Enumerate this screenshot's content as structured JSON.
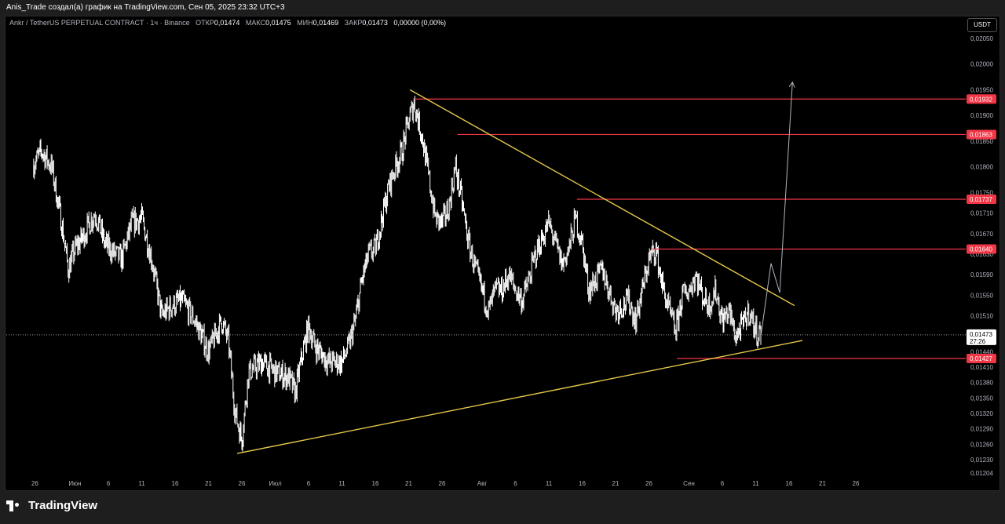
{
  "header": {
    "attribution": "Anis_Trade создал(а) график на TradingView.com, Сен 05, 2025 23:32 UTC+3"
  },
  "legend": {
    "symbol": "Ankr / TetherUS PERPETUAL CONTRACT · 1ч · Binance",
    "open_label": "ОТКР",
    "open": "0,01474",
    "high_label": "МАКС",
    "high": "0,01475",
    "low_label": "МИН",
    "low": "0,01469",
    "close_label": "ЗАКР",
    "close": "0,01473",
    "change": "0,00000 (0,00%)"
  },
  "currency_button": "USDT",
  "footer": {
    "brand": "TradingView"
  },
  "colors": {
    "background": "#000000",
    "candles": "#ffffff",
    "trendlines": "#e6c84a",
    "levels": "#f23645",
    "projection": "#b2b5be"
  },
  "chart_data": {
    "type": "line",
    "title": "Ankr / TetherUS PERPETUAL CONTRACT · 1ч · Binance",
    "xlabel": "",
    "ylabel": "",
    "ylim": [
      0.0119,
      0.0207
    ],
    "y_ticks": [
      "0,02050",
      "0,02000",
      "0,01950",
      "0,01900",
      "0,01850",
      "0,01800",
      "0,01750",
      "0,01710",
      "0,01670",
      "0,01630",
      "0,01590",
      "0,01550",
      "0,01510",
      "0,01440",
      "0,01410",
      "0,01380",
      "0,01350",
      "0,01320",
      "0,01290",
      "0,01260",
      "0,01230",
      "0,01204"
    ],
    "x_ticks": [
      {
        "label": "26",
        "d": -1
      },
      {
        "label": "Июн",
        "d": 5
      },
      {
        "label": "6",
        "d": 10
      },
      {
        "label": "11",
        "d": 15
      },
      {
        "label": "16",
        "d": 20
      },
      {
        "label": "21",
        "d": 25
      },
      {
        "label": "26",
        "d": 30
      },
      {
        "label": "Июл",
        "d": 35
      },
      {
        "label": "6",
        "d": 40
      },
      {
        "label": "11",
        "d": 45
      },
      {
        "label": "16",
        "d": 50
      },
      {
        "label": "21",
        "d": 55
      },
      {
        "label": "26",
        "d": 60
      },
      {
        "label": "Авг",
        "d": 66
      },
      {
        "label": "6",
        "d": 71
      },
      {
        "label": "11",
        "d": 76
      },
      {
        "label": "16",
        "d": 81
      },
      {
        "label": "21",
        "d": 86
      },
      {
        "label": "26",
        "d": 91
      },
      {
        "label": "Сен",
        "d": 97
      },
      {
        "label": "6",
        "d": 102
      },
      {
        "label": "11",
        "d": 107
      },
      {
        "label": "16",
        "d": 112
      },
      {
        "label": "21",
        "d": 117
      },
      {
        "label": "26",
        "d": 122
      }
    ],
    "price_path": [
      [
        -1.2,
        0.01805
      ],
      [
        0,
        0.0183
      ],
      [
        1.5,
        0.018
      ],
      [
        3,
        0.0169
      ],
      [
        4,
        0.016
      ],
      [
        5,
        0.0164
      ],
      [
        6,
        0.0166
      ],
      [
        8,
        0.0171
      ],
      [
        9.5,
        0.0165
      ],
      [
        11,
        0.0163
      ],
      [
        12,
        0.0162
      ],
      [
        13.5,
        0.0169
      ],
      [
        15,
        0.017
      ],
      [
        16.5,
        0.0162
      ],
      [
        18,
        0.0151
      ],
      [
        19.5,
        0.0153
      ],
      [
        21,
        0.0154
      ],
      [
        23,
        0.015
      ],
      [
        25,
        0.0144
      ],
      [
        27,
        0.015
      ],
      [
        28,
        0.0146
      ],
      [
        29,
        0.0132
      ],
      [
        30,
        0.0127
      ],
      [
        31,
        0.014
      ],
      [
        33,
        0.0142
      ],
      [
        35,
        0.014
      ],
      [
        37,
        0.0139
      ],
      [
        38,
        0.0136
      ],
      [
        39,
        0.0143
      ],
      [
        40,
        0.0149
      ],
      [
        41,
        0.0145
      ],
      [
        43,
        0.0142
      ],
      [
        45,
        0.0142
      ],
      [
        46,
        0.0145
      ],
      [
        47,
        0.015
      ],
      [
        48,
        0.0158
      ],
      [
        49,
        0.0163
      ],
      [
        50,
        0.0164
      ],
      [
        51,
        0.017
      ],
      [
        52,
        0.0176
      ],
      [
        53,
        0.018
      ],
      [
        54,
        0.0183
      ],
      [
        55,
        0.0189
      ],
      [
        55.8,
        0.01925
      ],
      [
        57,
        0.0186
      ],
      [
        58,
        0.0178
      ],
      [
        59,
        0.017
      ],
      [
        60,
        0.0169
      ],
      [
        61,
        0.0172
      ],
      [
        62,
        0.018
      ],
      [
        63,
        0.0173
      ],
      [
        64,
        0.0165
      ],
      [
        65,
        0.016
      ],
      [
        66,
        0.0156
      ],
      [
        67,
        0.0152
      ],
      [
        68,
        0.0156
      ],
      [
        69,
        0.0156
      ],
      [
        70,
        0.0159
      ],
      [
        71,
        0.0156
      ],
      [
        72,
        0.0154
      ],
      [
        73,
        0.0158
      ],
      [
        74,
        0.0163
      ],
      [
        75,
        0.0166
      ],
      [
        76,
        0.0169
      ],
      [
        77,
        0.0165
      ],
      [
        78,
        0.0161
      ],
      [
        79,
        0.0164
      ],
      [
        80,
        0.017
      ],
      [
        81,
        0.0165
      ],
      [
        82,
        0.0156
      ],
      [
        83,
        0.0158
      ],
      [
        84,
        0.016
      ],
      [
        85,
        0.0156
      ],
      [
        86,
        0.0152
      ],
      [
        87,
        0.0153
      ],
      [
        88,
        0.0154
      ],
      [
        89,
        0.015
      ],
      [
        90,
        0.0156
      ],
      [
        91,
        0.0162
      ],
      [
        92,
        0.0164
      ],
      [
        93,
        0.0157
      ],
      [
        94,
        0.0152
      ],
      [
        95,
        0.0148
      ],
      [
        96,
        0.0155
      ],
      [
        97,
        0.0156
      ],
      [
        98,
        0.0159
      ],
      [
        99,
        0.0155
      ],
      [
        100,
        0.0153
      ],
      [
        101,
        0.0156
      ],
      [
        102,
        0.015
      ],
      [
        103,
        0.0152
      ],
      [
        104,
        0.0147
      ],
      [
        105,
        0.0149
      ],
      [
        106,
        0.0152
      ],
      [
        107,
        0.0148
      ],
      [
        107.8,
        0.01473
      ]
    ],
    "current_price": "0,01473",
    "countdown": "27:26",
    "horizontal_levels": [
      {
        "value": 0.01932,
        "label": "0,01932",
        "start_d": 55.8
      },
      {
        "value": 0.01863,
        "label": "0,01863",
        "start_d": 62.3
      },
      {
        "value": 0.01737,
        "label": "0,01737",
        "start_d": 80.2
      },
      {
        "value": 0.0164,
        "label": "0,01640",
        "start_d": 91.5
      },
      {
        "value": 0.01427,
        "label": "0,01427",
        "start_d": 95.2
      }
    ],
    "trendlines": [
      {
        "name": "",
        "from": [
          55.2,
          0.0195
        ],
        "to": [
          112.8,
          0.0153
        ]
      },
      {
        "name": "",
        "from": [
          29.3,
          0.01242
        ],
        "to": [
          114,
          0.01462
        ]
      }
    ],
    "projection": [
      [
        107.8,
        0.01473
      ],
      [
        109.3,
        0.01612
      ],
      [
        110.6,
        0.01555
      ],
      [
        112.5,
        0.01965
      ]
    ]
  }
}
